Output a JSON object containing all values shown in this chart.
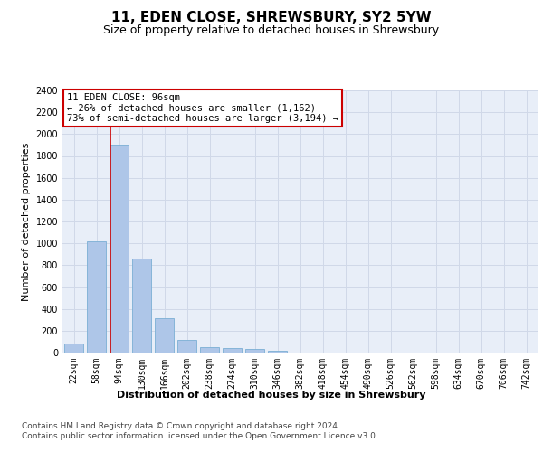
{
  "title": "11, EDEN CLOSE, SHREWSBURY, SY2 5YW",
  "subtitle": "Size of property relative to detached houses in Shrewsbury",
  "xlabel": "Distribution of detached houses by size in Shrewsbury",
  "ylabel": "Number of detached properties",
  "categories": [
    "22sqm",
    "58sqm",
    "94sqm",
    "130sqm",
    "166sqm",
    "202sqm",
    "238sqm",
    "274sqm",
    "310sqm",
    "346sqm",
    "382sqm",
    "418sqm",
    "454sqm",
    "490sqm",
    "526sqm",
    "562sqm",
    "598sqm",
    "634sqm",
    "670sqm",
    "706sqm",
    "742sqm"
  ],
  "values": [
    80,
    1020,
    1900,
    860,
    315,
    115,
    50,
    40,
    30,
    20,
    0,
    0,
    0,
    0,
    0,
    0,
    0,
    0,
    0,
    0,
    0
  ],
  "bar_color": "#aec6e8",
  "bar_edge_color": "#7bafd4",
  "marker_line_color": "#cc0000",
  "annotation_text": "11 EDEN CLOSE: 96sqm\n← 26% of detached houses are smaller (1,162)\n73% of semi-detached houses are larger (3,194) →",
  "annotation_box_color": "#ffffff",
  "annotation_box_edge_color": "#cc0000",
  "ylim": [
    0,
    2400
  ],
  "yticks": [
    0,
    200,
    400,
    600,
    800,
    1000,
    1200,
    1400,
    1600,
    1800,
    2000,
    2200,
    2400
  ],
  "grid_color": "#d0d8e8",
  "background_color": "#e8eef8",
  "footer_text": "Contains HM Land Registry data © Crown copyright and database right 2024.\nContains public sector information licensed under the Open Government Licence v3.0.",
  "title_fontsize": 11,
  "subtitle_fontsize": 9,
  "xlabel_fontsize": 8,
  "ylabel_fontsize": 8,
  "tick_fontsize": 7,
  "annotation_fontsize": 7.5,
  "footer_fontsize": 6.5
}
